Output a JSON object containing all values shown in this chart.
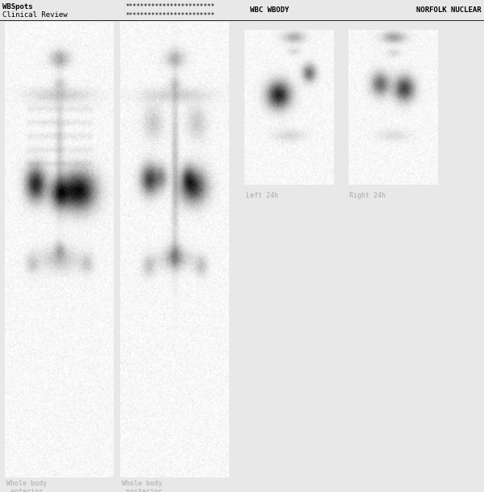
{
  "bg_color": "#e8e8e8",
  "header_bg": "#ffffff",
  "header_left_line1": "WBSpots",
  "header_left_line2": "Clinical Review",
  "header_stars_line1": "************************",
  "header_stars_line2": "************************",
  "header_center": "WBC WBODY",
  "header_right": "NORFOLK NUCLEAR",
  "label_color": "#aaaaaa",
  "label_anterior": "Whole body\n anterior",
  "label_posterior": "Whole body\n posterior",
  "label_left24": "Left 24h",
  "label_right24": "Right 24h"
}
